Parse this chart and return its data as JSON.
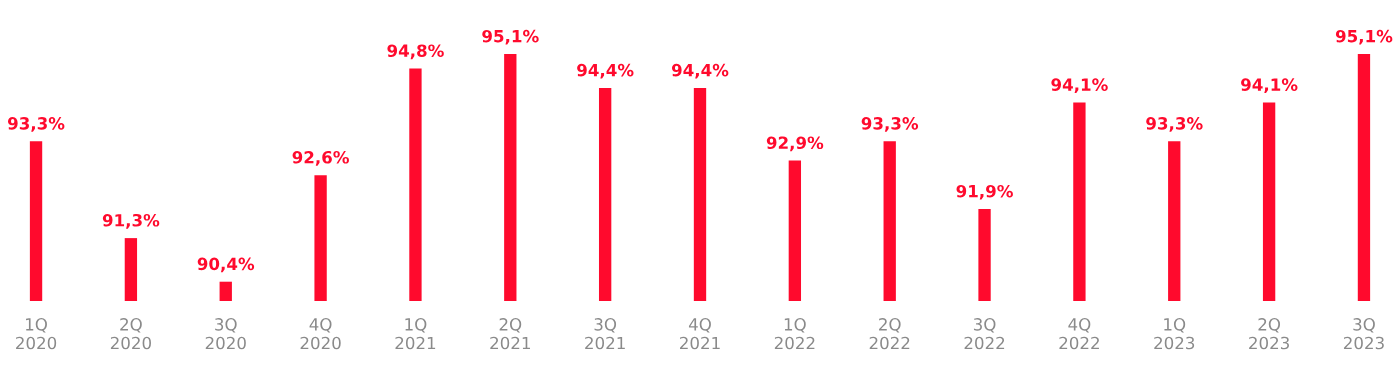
{
  "chart_data": {
    "type": "bar",
    "categories": [
      "1Q\n2020",
      "2Q\n2020",
      "3Q\n2020",
      "4Q\n2020",
      "1Q\n2021",
      "2Q\n2021",
      "3Q\n2021",
      "4Q\n2021",
      "1Q\n2022",
      "2Q\n2022",
      "3Q\n2022",
      "4Q\n2022",
      "1Q\n2023",
      "2Q\n2023",
      "3Q\n2023"
    ],
    "values": [
      93.3,
      91.3,
      90.4,
      92.6,
      94.8,
      95.1,
      94.4,
      94.4,
      92.9,
      93.3,
      91.9,
      94.1,
      93.3,
      94.1,
      95.1
    ],
    "value_labels": [
      "93,3%",
      "91,3%",
      "90,4%",
      "92,6%",
      "94,8%",
      "95,1%",
      "94,4%",
      "94,4%",
      "92,9%",
      "93,3%",
      "91,9%",
      "94,1%",
      "93,3%",
      "94,1%",
      "95,1%"
    ],
    "color": "#ff0a2d",
    "ylim": [
      90,
      95.1
    ],
    "tick_labels": "x",
    "grid": false,
    "legend": false
  }
}
